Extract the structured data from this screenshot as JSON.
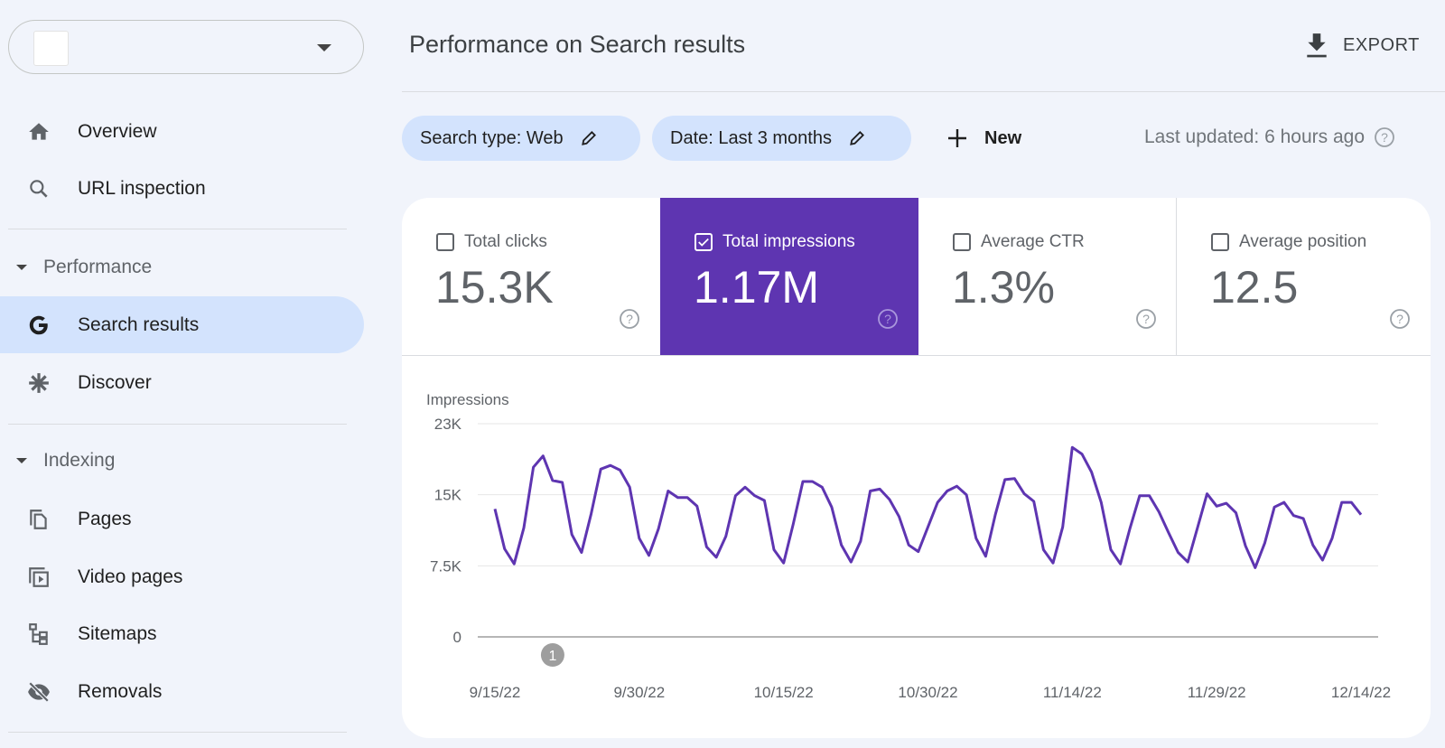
{
  "sidebar": {
    "property_selector": {
      "icon": "caret-down-icon"
    },
    "items_top": [
      {
        "label": "Overview",
        "icon": "home-icon"
      },
      {
        "label": "URL inspection",
        "icon": "search-icon"
      }
    ],
    "performance": {
      "header": "Performance",
      "items": [
        {
          "label": "Search results",
          "icon": "google-g-icon",
          "active": true
        },
        {
          "label": "Discover",
          "icon": "asterisk-icon"
        }
      ]
    },
    "indexing": {
      "header": "Indexing",
      "items": [
        {
          "label": "Pages",
          "icon": "pages-icon"
        },
        {
          "label": "Video pages",
          "icon": "video-pages-icon"
        },
        {
          "label": "Sitemaps",
          "icon": "sitemap-icon"
        },
        {
          "label": "Removals",
          "icon": "eye-off-icon"
        }
      ]
    }
  },
  "header": {
    "title": "Performance on Search results",
    "export_label": "EXPORT"
  },
  "filters": {
    "search_type": "Search type: Web",
    "date": "Date: Last 3 months",
    "new_label": "New",
    "last_updated": "Last updated: 6 hours ago"
  },
  "metrics": [
    {
      "label": "Total clicks",
      "value": "15.3K",
      "checked": false
    },
    {
      "label": "Total impressions",
      "value": "1.17M",
      "checked": true
    },
    {
      "label": "Average CTR",
      "value": "1.3%",
      "checked": false
    },
    {
      "label": "Average position",
      "value": "12.5",
      "checked": false
    }
  ],
  "colors": {
    "accent": "#5e35b1",
    "line": "#5e35b1",
    "chip": "#d3e3fd",
    "background": "#f1f4fb"
  },
  "chart_data": {
    "type": "line",
    "ylabel": "Impressions",
    "ylim": [
      0,
      22500
    ],
    "y_ticks": [
      {
        "value": 0,
        "label": "0"
      },
      {
        "value": 7500,
        "label": "7.5K"
      },
      {
        "value": 15000,
        "label": "15K"
      },
      {
        "value": 22500,
        "label": "23K"
      }
    ],
    "x_ticks": [
      "9/15/22",
      "9/30/22",
      "10/15/22",
      "10/30/22",
      "11/14/22",
      "11/29/22",
      "12/14/22"
    ],
    "grid": true,
    "annotations": [
      {
        "x": "9/21/22",
        "label": "1"
      }
    ],
    "x": [
      "9/15/22",
      "9/16/22",
      "9/17/22",
      "9/18/22",
      "9/19/22",
      "9/20/22",
      "9/21/22",
      "9/22/22",
      "9/23/22",
      "9/24/22",
      "9/25/22",
      "9/26/22",
      "9/27/22",
      "9/28/22",
      "9/29/22",
      "9/30/22",
      "10/1/22",
      "10/2/22",
      "10/3/22",
      "10/4/22",
      "10/5/22",
      "10/6/22",
      "10/7/22",
      "10/8/22",
      "10/9/22",
      "10/10/22",
      "10/11/22",
      "10/12/22",
      "10/13/22",
      "10/14/22",
      "10/15/22",
      "10/16/22",
      "10/17/22",
      "10/18/22",
      "10/19/22",
      "10/20/22",
      "10/21/22",
      "10/22/22",
      "10/23/22",
      "10/24/22",
      "10/25/22",
      "10/26/22",
      "10/27/22",
      "10/28/22",
      "10/29/22",
      "10/30/22",
      "10/31/22",
      "11/1/22",
      "11/2/22",
      "11/3/22",
      "11/4/22",
      "11/5/22",
      "11/6/22",
      "11/7/22",
      "11/8/22",
      "11/9/22",
      "11/10/22",
      "11/11/22",
      "11/12/22",
      "11/13/22",
      "11/14/22",
      "11/15/22",
      "11/16/22",
      "11/17/22",
      "11/18/22",
      "11/19/22",
      "11/20/22",
      "11/21/22",
      "11/22/22",
      "11/23/22",
      "11/24/22",
      "11/25/22",
      "11/26/22",
      "11/27/22",
      "11/28/22",
      "11/29/22",
      "11/30/22",
      "12/1/22",
      "12/2/22",
      "12/3/22",
      "12/4/22",
      "12/5/22",
      "12/6/22",
      "12/7/22",
      "12/8/22",
      "12/9/22",
      "12/10/22",
      "12/11/22",
      "12/12/22",
      "12/13/22",
      "12/14/22"
    ],
    "series": [
      {
        "values": [
          13500,
          9300,
          7700,
          11500,
          17900,
          19100,
          16500,
          16300,
          10800,
          8900,
          13000,
          17700,
          18100,
          17600,
          15800,
          10400,
          8600,
          11400,
          15400,
          14700,
          14700,
          13800,
          9500,
          8400,
          10600,
          14900,
          15800,
          14900,
          14400,
          9200,
          7800,
          11900,
          16400,
          16400,
          15800,
          13700,
          9700,
          7900,
          10100,
          15400,
          15600,
          14500,
          12700,
          9700,
          9000,
          11600,
          14200,
          15400,
          15900,
          15000,
          10400,
          8500,
          12900,
          16600,
          16700,
          15100,
          14300,
          9200,
          7800,
          11600,
          20000,
          19300,
          17400,
          14200,
          9200,
          7700,
          11500,
          14900,
          14900,
          13200,
          11000,
          8900,
          7900,
          11500,
          15100,
          13800,
          14100,
          13100,
          9600,
          7300,
          9900,
          13700,
          14200,
          12800,
          12500,
          9700,
          8100,
          10400,
          14200,
          14200,
          12900
        ]
      }
    ]
  }
}
